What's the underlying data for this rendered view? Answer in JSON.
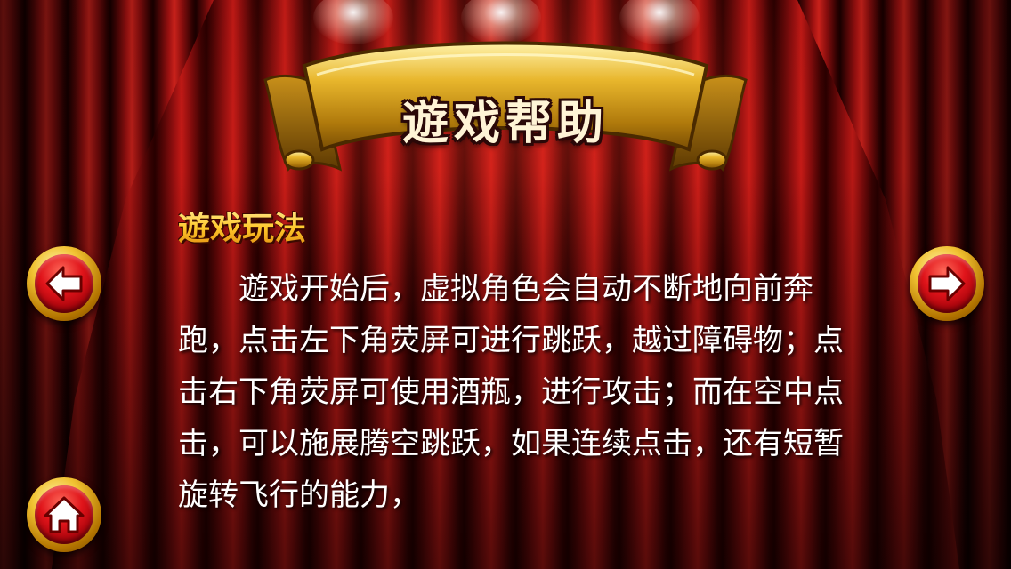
{
  "banner": {
    "title": "遊戏帮助"
  },
  "section": {
    "heading": "遊戏玩法",
    "body": "　　遊戏开始后，虚拟角色会自动不断地向前奔跑，点击左下角荧屏可进行跳跃，越过障碍物；点击右下角荧屏可使用酒瓶，进行攻击；而在空中点击，可以施展腾空跳跃，如果连续点击，还有短暂旋转飞行的能力，"
  },
  "controls": {
    "prev_icon": "arrow-left-icon",
    "next_icon": "arrow-right-icon",
    "home_icon": "home-icon"
  },
  "colors": {
    "curtain_red": "#c41a16",
    "banner_gold": "#d9a520",
    "heading_gold": "#ffc82a",
    "button_red": "#e0141a",
    "text_white": "#ffffff"
  }
}
